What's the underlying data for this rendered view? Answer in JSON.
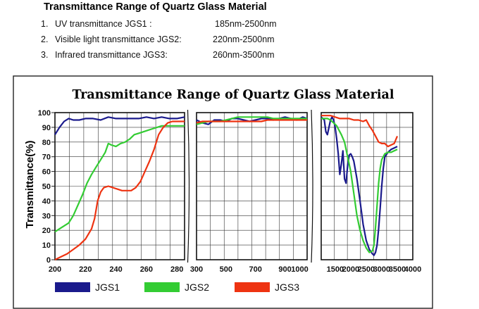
{
  "heading": "Transmittance Range of Quartz Glass Material",
  "specs": [
    {
      "num": "1.",
      "label": "UV transmittance JGS1 :",
      "range": "185nm-2500nm"
    },
    {
      "num": "2.",
      "label": "Visible light transmittance JGS2:",
      "range": "220nm-2500nm"
    },
    {
      "num": "3.",
      "label": "Infrared transmittance JGS3:",
      "range": "260nm-3500nm"
    }
  ],
  "chart_data": {
    "type": "line",
    "title": "Transmittance Range of Quartz Glass Material",
    "ylabel": "Transmittance(%)",
    "xlabel": "",
    "ylim": [
      0,
      100
    ],
    "yticks": [
      0,
      10,
      20,
      30,
      40,
      50,
      60,
      70,
      80,
      90,
      100
    ],
    "grid": true,
    "legend_position": "bottom",
    "panels": [
      {
        "xlim": [
          200,
          285
        ],
        "xticks": [
          200,
          220,
          240,
          260,
          280
        ],
        "series": [
          {
            "name": "JGS1",
            "color": "#1a1a8c",
            "points": [
              [
                200,
                85
              ],
              [
                203,
                90
              ],
              [
                206,
                94
              ],
              [
                209,
                96
              ],
              [
                212,
                95
              ],
              [
                216,
                95
              ],
              [
                220,
                96
              ],
              [
                225,
                96
              ],
              [
                230,
                95
              ],
              [
                235,
                97
              ],
              [
                240,
                96
              ],
              [
                245,
                96
              ],
              [
                250,
                96
              ],
              [
                255,
                96
              ],
              [
                260,
                97
              ],
              [
                265,
                96
              ],
              [
                270,
                97
              ],
              [
                275,
                96
              ],
              [
                280,
                96
              ],
              [
                285,
                97
              ]
            ]
          },
          {
            "name": "JGS2",
            "color": "#33cc33",
            "points": [
              [
                200,
                19
              ],
              [
                203,
                21
              ],
              [
                206,
                23
              ],
              [
                209,
                25
              ],
              [
                212,
                30
              ],
              [
                215,
                37
              ],
              [
                218,
                44
              ],
              [
                221,
                52
              ],
              [
                224,
                58
              ],
              [
                227,
                63
              ],
              [
                230,
                68
              ],
              [
                233,
                73
              ],
              [
                235,
                79
              ],
              [
                237,
                78
              ],
              [
                240,
                77
              ],
              [
                243,
                79
              ],
              [
                246,
                80
              ],
              [
                249,
                82
              ],
              [
                252,
                85
              ],
              [
                255,
                86
              ],
              [
                258,
                87
              ],
              [
                261,
                88
              ],
              [
                264,
                89
              ],
              [
                267,
                90
              ],
              [
                270,
                91
              ],
              [
                273,
                91
              ],
              [
                276,
                91
              ],
              [
                279,
                91
              ],
              [
                282,
                91
              ],
              [
                285,
                91
              ]
            ]
          },
          {
            "name": "JGS3",
            "color": "#ee3311",
            "points": [
              [
                200,
                0
              ],
              [
                204,
                2
              ],
              [
                208,
                4
              ],
              [
                212,
                7
              ],
              [
                216,
                10
              ],
              [
                220,
                14
              ],
              [
                224,
                21
              ],
              [
                226,
                28
              ],
              [
                228,
                40
              ],
              [
                230,
                46
              ],
              [
                232,
                49
              ],
              [
                235,
                50
              ],
              [
                238,
                49
              ],
              [
                241,
                48
              ],
              [
                244,
                47
              ],
              [
                247,
                47
              ],
              [
                250,
                47
              ],
              [
                253,
                49
              ],
              [
                256,
                53
              ],
              [
                259,
                60
              ],
              [
                262,
                67
              ],
              [
                265,
                75
              ],
              [
                268,
                85
              ],
              [
                271,
                90
              ],
              [
                274,
                93
              ],
              [
                277,
                94
              ],
              [
                280,
                94
              ],
              [
                285,
                94
              ]
            ]
          }
        ]
      },
      {
        "xlim": [
          300,
          1050
        ],
        "xticks": [
          300,
          500,
          700,
          900,
          1000
        ],
        "series": [
          {
            "name": "JGS1",
            "color": "#1a1a8c",
            "points": [
              [
                300,
                95
              ],
              [
                340,
                93
              ],
              [
                380,
                92
              ],
              [
                420,
                95
              ],
              [
                460,
                95
              ],
              [
                500,
                94
              ],
              [
                540,
                96
              ],
              [
                580,
                96
              ],
              [
                620,
                95
              ],
              [
                660,
                94
              ],
              [
                700,
                95
              ],
              [
                740,
                96
              ],
              [
                780,
                96
              ],
              [
                820,
                95
              ],
              [
                860,
                96
              ],
              [
                900,
                97
              ],
              [
                940,
                96
              ],
              [
                980,
                95
              ],
              [
                1020,
                97
              ],
              [
                1050,
                96
              ]
            ]
          },
          {
            "name": "JGS2",
            "color": "#33cc33",
            "points": [
              [
                300,
                92
              ],
              [
                340,
                93
              ],
              [
                380,
                94
              ],
              [
                420,
                94
              ],
              [
                460,
                94
              ],
              [
                500,
                95
              ],
              [
                540,
                96
              ],
              [
                580,
                97
              ],
              [
                620,
                97
              ],
              [
                660,
                97
              ],
              [
                700,
                97
              ],
              [
                740,
                97
              ],
              [
                780,
                97
              ],
              [
                820,
                96
              ],
              [
                860,
                96
              ],
              [
                900,
                96
              ],
              [
                940,
                96
              ],
              [
                980,
                96
              ],
              [
                1020,
                96
              ],
              [
                1050,
                96
              ]
            ]
          },
          {
            "name": "JGS3",
            "color": "#ee3311",
            "points": [
              [
                300,
                93
              ],
              [
                340,
                94
              ],
              [
                380,
                94
              ],
              [
                420,
                94
              ],
              [
                460,
                94
              ],
              [
                500,
                94
              ],
              [
                540,
                94
              ],
              [
                580,
                94
              ],
              [
                620,
                94
              ],
              [
                660,
                94
              ],
              [
                700,
                94
              ],
              [
                740,
                94
              ],
              [
                780,
                95
              ],
              [
                820,
                95
              ],
              [
                860,
                95
              ],
              [
                900,
                95
              ],
              [
                940,
                95
              ],
              [
                980,
                95
              ],
              [
                1020,
                95
              ],
              [
                1050,
                95
              ]
            ]
          }
        ]
      },
      {
        "xlim": [
          1050,
          4000
        ],
        "xticks": [
          1500,
          2000,
          2500,
          3000,
          3500,
          4000
        ],
        "series": [
          {
            "name": "JGS1",
            "color": "#1a1a8c",
            "points": [
              [
                1050,
                97
              ],
              [
                1150,
                95
              ],
              [
                1200,
                87
              ],
              [
                1250,
                85
              ],
              [
                1300,
                90
              ],
              [
                1350,
                95
              ],
              [
                1400,
                97
              ],
              [
                1450,
                95
              ],
              [
                1500,
                90
              ],
              [
                1550,
                82
              ],
              [
                1600,
                72
              ],
              [
                1650,
                58
              ],
              [
                1700,
                65
              ],
              [
                1750,
                74
              ],
              [
                1800,
                55
              ],
              [
                1850,
                52
              ],
              [
                1900,
                64
              ],
              [
                1950,
                71
              ],
              [
                2000,
                72
              ],
              [
                2050,
                70
              ],
              [
                2100,
                67
              ],
              [
                2200,
                55
              ],
              [
                2300,
                40
              ],
              [
                2400,
                24
              ],
              [
                2500,
                13
              ],
              [
                2600,
                7
              ],
              [
                2700,
                4
              ],
              [
                2750,
                3
              ],
              [
                2800,
                5
              ],
              [
                2850,
                10
              ],
              [
                2900,
                21
              ],
              [
                2950,
                35
              ],
              [
                3000,
                50
              ],
              [
                3050,
                62
              ],
              [
                3100,
                70
              ],
              [
                3200,
                73
              ],
              [
                3300,
                75
              ],
              [
                3400,
                76
              ],
              [
                3500,
                77
              ]
            ]
          },
          {
            "name": "JGS2",
            "color": "#33cc33",
            "points": [
              [
                1050,
                96
              ],
              [
                1150,
                96
              ],
              [
                1250,
                96
              ],
              [
                1350,
                95
              ],
              [
                1450,
                93
              ],
              [
                1550,
                91
              ],
              [
                1600,
                89
              ],
              [
                1700,
                85
              ],
              [
                1800,
                80
              ],
              [
                1900,
                70
              ],
              [
                2000,
                60
              ],
              [
                2100,
                45
              ],
              [
                2200,
                30
              ],
              [
                2300,
                20
              ],
              [
                2400,
                13
              ],
              [
                2500,
                8
              ],
              [
                2600,
                5
              ],
              [
                2700,
                6
              ],
              [
                2750,
                10
              ],
              [
                2800,
                22
              ],
              [
                2850,
                37
              ],
              [
                2900,
                52
              ],
              [
                2950,
                62
              ],
              [
                3000,
                68
              ],
              [
                3100,
                72
              ],
              [
                3200,
                73
              ],
              [
                3300,
                73
              ],
              [
                3400,
                74
              ],
              [
                3500,
                75
              ]
            ]
          },
          {
            "name": "JGS3",
            "color": "#ee3311",
            "points": [
              [
                1050,
                98
              ],
              [
                1200,
                98
              ],
              [
                1350,
                98
              ],
              [
                1500,
                97
              ],
              [
                1650,
                96
              ],
              [
                1800,
                96
              ],
              [
                1950,
                96
              ],
              [
                2100,
                95
              ],
              [
                2250,
                95
              ],
              [
                2400,
                94
              ],
              [
                2500,
                95
              ],
              [
                2550,
                93
              ],
              [
                2600,
                91
              ],
              [
                2700,
                88
              ],
              [
                2800,
                84
              ],
              [
                2900,
                80
              ],
              [
                3000,
                79
              ],
              [
                3100,
                79
              ],
              [
                3200,
                77
              ],
              [
                3300,
                78
              ],
              [
                3400,
                79
              ],
              [
                3500,
                84
              ]
            ]
          }
        ]
      }
    ],
    "legend": [
      {
        "name": "JGS1",
        "color": "#1a1a8c"
      },
      {
        "name": "JGS2",
        "color": "#33cc33"
      },
      {
        "name": "JGS3",
        "color": "#ee3311"
      }
    ]
  }
}
